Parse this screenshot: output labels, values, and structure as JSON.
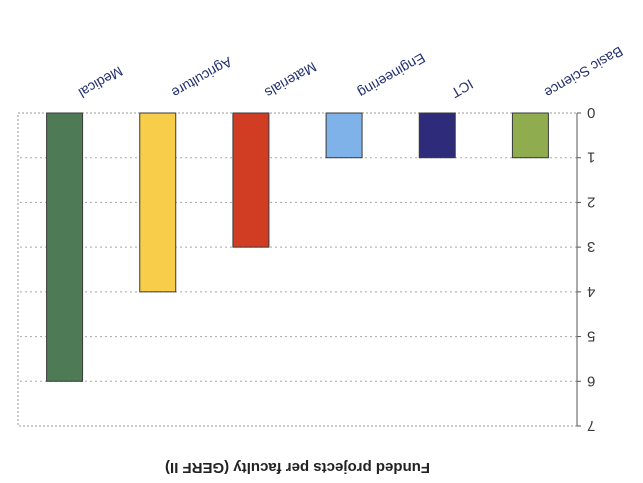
{
  "chart_data": {
    "type": "bar",
    "title": "Funded projects per faculty (GERF II)",
    "xlabel": "",
    "ylabel": "",
    "categories": [
      "Basic Science",
      "ICT",
      "Engineering",
      "Materials",
      "Agriculture",
      "Medical"
    ],
    "values": [
      1,
      1,
      1,
      3,
      4,
      6
    ],
    "colors": [
      "#8fad4e",
      "#2d2b7a",
      "#7fb2e8",
      "#d13d22",
      "#f7cd4a",
      "#4e7b55"
    ],
    "ylim": [
      0,
      7
    ],
    "yticks": [
      "0",
      "1",
      "2",
      "3",
      "4",
      "5",
      "6",
      "7"
    ],
    "grid": true,
    "legend": "none"
  }
}
